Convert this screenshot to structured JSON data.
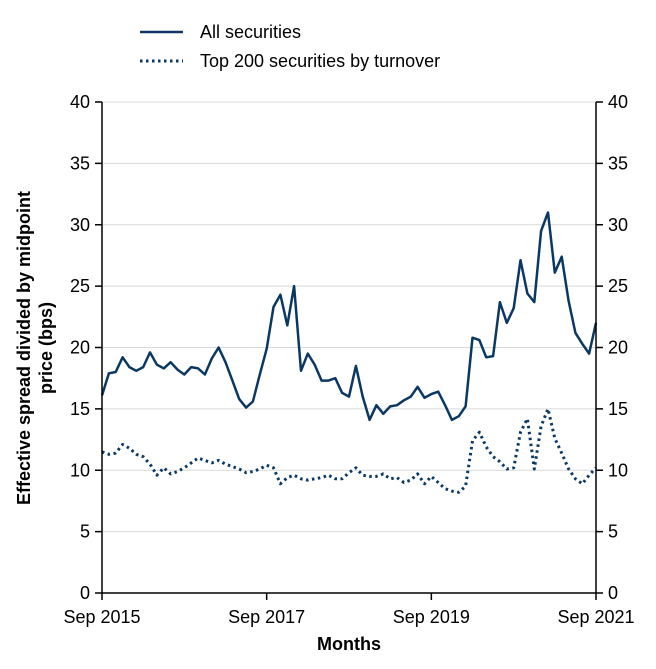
{
  "chart_data": {
    "type": "line",
    "xlabel": "Months",
    "ylabel_line1": "Effective spread divided by midpoint",
    "ylabel_line2": "price (bps)",
    "ylim": [
      0,
      40
    ],
    "y_ticks": [
      "0",
      "5",
      "10",
      "15",
      "20",
      "25",
      "30",
      "35",
      "40"
    ],
    "x_ticks": [
      "Sep 2015",
      "Sep 2017",
      "Sep 2019",
      "Sep 2021"
    ],
    "x_range_months": [
      0,
      72
    ],
    "grid": "horizontal",
    "legend_position": "top-left",
    "colors": {
      "line": "#0b3862",
      "grid": "#d9d9d9",
      "axis": "#000000"
    },
    "series": [
      {
        "name": "All securities",
        "style": "solid",
        "values": [
          16.1,
          17.9,
          18.0,
          19.2,
          18.4,
          18.1,
          18.4,
          19.6,
          18.6,
          18.3,
          18.8,
          18.2,
          17.8,
          18.4,
          18.3,
          17.8,
          19.1,
          20.0,
          18.8,
          17.3,
          15.8,
          15.1,
          15.6,
          17.8,
          19.9,
          23.3,
          24.3,
          21.8,
          25.0,
          18.1,
          19.5,
          18.6,
          17.3,
          17.3,
          17.5,
          16.3,
          16.0,
          18.5,
          16.0,
          14.1,
          15.3,
          14.6,
          15.2,
          15.3,
          15.7,
          16.0,
          16.8,
          15.9,
          16.2,
          16.4,
          15.3,
          14.1,
          14.4,
          15.2,
          20.8,
          20.6,
          19.2,
          19.3,
          23.7,
          22.0,
          23.2,
          27.1,
          24.4,
          23.7,
          29.5,
          31.0,
          26.1,
          27.4,
          23.8,
          21.2,
          20.3,
          19.5,
          22.0
        ]
      },
      {
        "name": "Top 200 securities by turnover",
        "style": "dotted",
        "values": [
          11.5,
          11.3,
          11.4,
          12.1,
          11.8,
          11.3,
          11.1,
          10.5,
          9.6,
          10.2,
          9.7,
          9.9,
          10.2,
          10.6,
          11.0,
          10.8,
          10.6,
          10.8,
          10.5,
          10.3,
          10.1,
          9.8,
          9.9,
          10.1,
          10.4,
          10.2,
          8.9,
          9.4,
          9.6,
          9.3,
          9.2,
          9.3,
          9.4,
          9.6,
          9.3,
          9.3,
          9.8,
          10.2,
          9.6,
          9.5,
          9.5,
          9.7,
          9.3,
          9.4,
          9.0,
          9.2,
          9.7,
          8.9,
          9.5,
          9.0,
          8.5,
          8.3,
          8.2,
          8.7,
          12.4,
          13.1,
          11.9,
          11.1,
          10.7,
          10.1,
          10.2,
          13.1,
          14.2,
          10.1,
          13.6,
          15.0,
          12.6,
          11.4,
          10.1,
          9.3,
          8.9,
          9.6,
          10.2
        ]
      }
    ]
  }
}
